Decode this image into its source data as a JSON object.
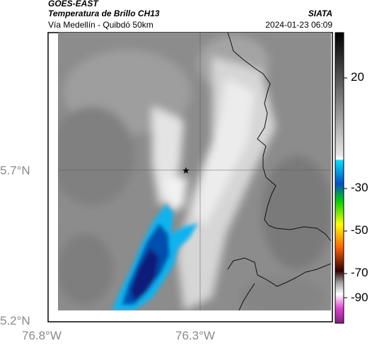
{
  "header": {
    "title_line1": "GOES-EAST",
    "title_line2": "Temperatura de Brillo CH13",
    "subtitle": "Vía Medellín - Quibdó 50km",
    "organization": "SIATA",
    "timestamp": "2024-01-23 06:09"
  },
  "map": {
    "lat_labels": [
      "5.7°N",
      "5.2°N"
    ],
    "lon_labels": [
      "76.8°W",
      "76.3°W"
    ],
    "marker": "★",
    "colors": {
      "cold_dark": "#0a1f7a",
      "cold_mid": "#0050b0",
      "cold_light": "#0ab4f0",
      "cloud_white": "#f5f5f5",
      "background_gray": "#8c8c8c"
    }
  },
  "colorbar": {
    "tick_labels": [
      "20",
      "-30",
      "-50",
      "-70",
      "-90"
    ],
    "units": ""
  }
}
